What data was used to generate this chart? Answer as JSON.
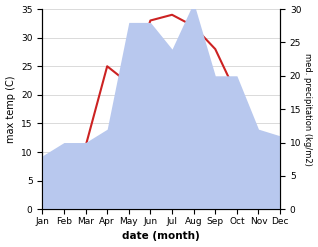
{
  "months": [
    "Jan",
    "Feb",
    "Mar",
    "Apr",
    "May",
    "Jun",
    "Jul",
    "Aug",
    "Sep",
    "Oct",
    "Nov",
    "Dec"
  ],
  "temperature": [
    4,
    8,
    11,
    25,
    22,
    33,
    34,
    32,
    28,
    20,
    11,
    4
  ],
  "precipitation": [
    8,
    10,
    10,
    12,
    28,
    28,
    24,
    31,
    20,
    20,
    12,
    11
  ],
  "temp_color": "#cc2222",
  "precip_fill_color": "#b8c8ee",
  "temp_ylim": [
    0,
    35
  ],
  "precip_ylim": [
    0,
    30
  ],
  "temp_yticks": [
    0,
    5,
    10,
    15,
    20,
    25,
    30,
    35
  ],
  "precip_yticks": [
    0,
    5,
    10,
    15,
    20,
    25,
    30
  ],
  "ylabel_left": "max temp (C)",
  "ylabel_right": "med. precipitation (kg/m2)",
  "xlabel": "date (month)",
  "bg_color": "#ffffff",
  "grid_color": "#cccccc"
}
